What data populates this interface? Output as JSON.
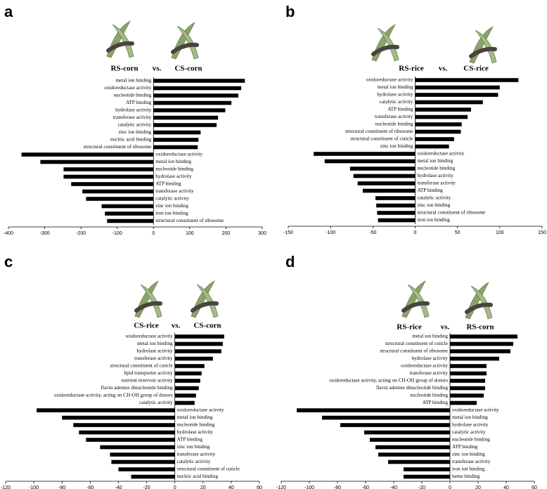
{
  "chart_data": [
    {
      "type": "bar",
      "orientation": "horizontal",
      "label": "a",
      "left_title": "RS-corn",
      "vs_text": "vs.",
      "right_title": "CS-corn",
      "color": "#000000",
      "categories": [
        "metal ion binding",
        "oxidoreductase activity",
        "nucleotide binding",
        "ATP binding",
        "hydrolase activity",
        "transferase activity",
        "catalytic activity",
        "zinc ion binding",
        "nucleic acid binding",
        "structural constituent of ribosome",
        "oxidoreductase activity",
        "metal ion binding",
        "nucleotide binding",
        "hydrolase activity",
        "ATP binding",
        "transferase activity",
        "catalytic activity",
        "zinc ion binding",
        "iron ion binding",
        "structural constituent of ribosome"
      ],
      "values": [
        252,
        242,
        234,
        215,
        198,
        178,
        174,
        130,
        124,
        122,
        -364,
        -312,
        -248,
        -248,
        -227,
        -196,
        -186,
        -143,
        -134,
        -128
      ],
      "xlim": [
        -400,
        300
      ],
      "xticks": [
        -400,
        -300,
        -200,
        -100,
        0,
        100,
        200,
        300
      ]
    },
    {
      "type": "bar",
      "orientation": "horizontal",
      "label": "b",
      "left_title": "RS-rice",
      "vs_text": "vs.",
      "right_title": "CS-rice",
      "color": "#000000",
      "categories": [
        "oxidoreductase activity",
        "metal ion binding",
        "hydrolase activity",
        "catalytic activity",
        "ATP binding",
        "transferase activity",
        "nucleotide binding",
        "structural constituent of ribosome",
        "structural constituent of cuticle",
        "zinc ion binding",
        "oxidoreductase activity",
        "metal ion binding",
        "nucleotide binding",
        "hydrolase activity",
        "transferase activity",
        "ATP binding",
        "catalytic activity",
        "zinc ion binding",
        "structural constituent of ribosome",
        "iron ion binding"
      ],
      "values": [
        122,
        100,
        98,
        80,
        66,
        62,
        55,
        54,
        46,
        40,
        -120,
        -107,
        -77,
        -73,
        -68,
        -62,
        -47,
        -46,
        -45,
        -44
      ],
      "xlim": [
        -150,
        150
      ],
      "xticks": [
        -150,
        -100,
        -50,
        0,
        50,
        100,
        150
      ]
    },
    {
      "type": "bar",
      "orientation": "horizontal",
      "label": "c",
      "left_title": "CS-rice",
      "vs_text": "vs.",
      "right_title": "CS-corn",
      "color": "#000000",
      "categories": [
        "oxidoreductase activity",
        "metal ion binding",
        "hydrolase activity",
        "transferase activity",
        "structural constituent of cuticle",
        "lipid transporter activity",
        "nutrient reservoir activity",
        "flavin adenine dinucleotide binding",
        "oxidoreductase activity, acting on CH-OH group of donors",
        "catalytic activity",
        "oxidoreductase activity",
        "metal ion binding",
        "nucleotide binding",
        "hydrolase activity",
        "ATP binding",
        "zinc ion binding",
        "transferase activity",
        "catalytic activity",
        "structural constituent of cuticle",
        "nucleic acid binding"
      ],
      "values": [
        35,
        34,
        33,
        27,
        21,
        19,
        18,
        17,
        15,
        14,
        -98,
        -80,
        -72,
        -68,
        -63,
        -53,
        -46,
        -45,
        -40,
        -31
      ],
      "xlim": [
        -120,
        60
      ],
      "xticks": [
        -120,
        -100,
        -80,
        -60,
        -40,
        -20,
        0,
        20,
        40,
        60
      ]
    },
    {
      "type": "bar",
      "orientation": "horizontal",
      "label": "d",
      "left_title": "RS-rice",
      "vs_text": "vs.",
      "right_title": "RS-corn",
      "color": "#000000",
      "categories": [
        "metal ion binding",
        "structural constituent of cuticle",
        "structural constituent of ribosome",
        "hydrolase activity",
        "oxidoreductase activity",
        "transferase activity",
        "oxidoreductase activity, acting on CH-OH group of donors",
        "flavin adenine dinucleotide binding",
        "nucleotide binding",
        "ATP binding",
        "oxidoreductase activity",
        "metal ion binding",
        "hydrolase activity",
        "catalytic activity",
        "nucleotide binding",
        "ATP binding",
        "zinc ion binding",
        "transferase activity",
        "iron ion binding",
        "heme binding"
      ],
      "values": [
        48,
        45,
        43,
        35,
        26,
        26,
        25,
        25,
        24,
        19,
        -109,
        -91,
        -78,
        -61,
        -57,
        -53,
        -51,
        -44,
        -33,
        -33
      ],
      "xlim": [
        -120,
        60
      ],
      "xticks": [
        -120,
        -100,
        -80,
        -60,
        -40,
        -20,
        0,
        20,
        40,
        60
      ]
    }
  ]
}
